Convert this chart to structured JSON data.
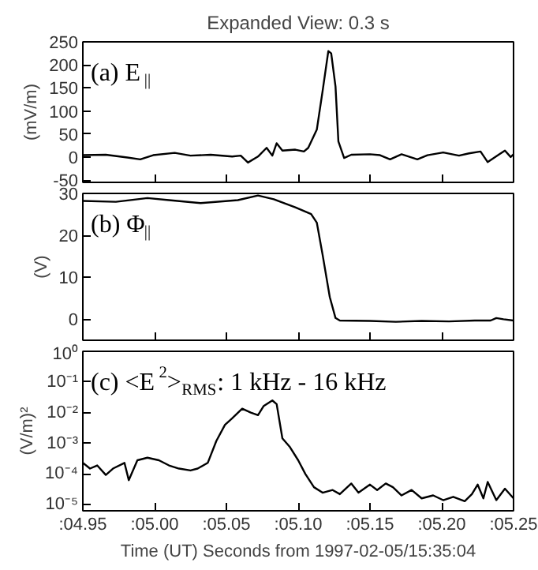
{
  "chart_data": [
    {
      "type": "line",
      "title": "Expanded View: 0.3 s",
      "ylabel": "(mV/m)",
      "annotations": [
        "(a) E$_{||}$"
      ],
      "x": [
        4.95,
        4.966,
        4.981,
        4.99,
        4.999,
        5.014,
        5.025,
        5.039,
        5.054,
        5.06,
        5.065,
        5.072,
        5.078,
        5.082,
        5.085,
        5.089,
        5.098,
        5.104,
        5.107,
        5.113,
        5.117,
        5.121,
        5.123,
        5.126,
        5.128,
        5.132,
        5.137,
        5.15,
        5.157,
        5.164,
        5.172,
        5.183,
        5.19,
        5.201,
        5.212,
        5.219,
        5.227,
        5.232,
        5.24,
        5.244,
        5.248,
        5.25
      ],
      "series": [
        {
          "color": "#000000",
          "values": [
            4,
            5,
            -1,
            -5,
            4,
            9,
            3,
            5,
            1,
            3,
            -12,
            1,
            20,
            3,
            30,
            14,
            16,
            12,
            20,
            60,
            143,
            230,
            225,
            153,
            34,
            -2,
            5,
            6,
            4,
            -5,
            6,
            -5,
            4,
            10,
            3,
            8,
            12,
            -11,
            6,
            14,
            0,
            6
          ]
        }
      ],
      "xlim": [
        4.95,
        5.25
      ],
      "xticks": [
        4.95,
        5.0,
        5.05,
        5.1,
        5.15,
        5.2,
        5.25
      ],
      "ylim": [
        -55,
        250
      ],
      "yticks": [
        -50,
        0,
        50,
        100,
        150,
        200,
        250
      ],
      "tick_labels": "y",
      "grid": false
    },
    {
      "type": "line",
      "ylabel": "(V)",
      "annotations": [
        "(b) Φ$_{||}$"
      ],
      "x": [
        4.95,
        4.973,
        4.995,
        5.01,
        5.032,
        5.058,
        5.072,
        5.083,
        5.098,
        5.109,
        5.113,
        5.117,
        5.122,
        5.126,
        5.129,
        5.15,
        5.168,
        5.186,
        5.205,
        5.223,
        5.234,
        5.238,
        5.243,
        5.25
      ],
      "series": [
        {
          "color": "#000000",
          "values": [
            28.2,
            28,
            28.9,
            28.4,
            27.7,
            28.4,
            29.5,
            28.6,
            26.7,
            25.1,
            23,
            15.4,
            5.3,
            0.3,
            -0.3,
            -0.4,
            -0.6,
            -0.4,
            -0.5,
            -0.3,
            -0.3,
            0.3,
            0,
            -0.3
          ]
        }
      ],
      "xlim": [
        4.95,
        5.25
      ],
      "xticks": [
        4.95,
        5.0,
        5.05,
        5.1,
        5.15,
        5.2,
        5.25
      ],
      "ylim": [
        -5,
        30
      ],
      "yticks": [
        0,
        10,
        20,
        30
      ],
      "tick_labels": "y",
      "grid": false
    },
    {
      "type": "line",
      "ylabel": "(V/m)²",
      "xlabel": "Time (UT) Seconds from 1997-02-05/15:35:04",
      "annotations": [
        "(c) <E$^{2}$>$_{RMS}$: 1 kHz - 16 kHz"
      ],
      "log": true,
      "x": [
        4.95,
        4.955,
        4.96,
        4.966,
        4.971,
        4.979,
        4.982,
        4.988,
        4.995,
        5.003,
        5.01,
        5.017,
        5.025,
        5.03,
        5.037,
        5.043,
        5.049,
        5.054,
        5.061,
        5.067,
        5.072,
        5.076,
        5.082,
        5.085,
        5.089,
        5.094,
        5.1,
        5.105,
        5.111,
        5.117,
        5.124,
        5.129,
        5.137,
        5.142,
        5.15,
        5.155,
        5.161,
        5.166,
        5.172,
        5.179,
        5.186,
        5.194,
        5.201,
        5.208,
        5.216,
        5.221,
        5.225,
        5.229,
        5.232,
        5.238,
        5.244,
        5.25
      ],
      "series": [
        {
          "color": "#000000",
          "values": [
            0.00023,
            0.00015,
            0.00019,
            9.3e-05,
            0.00015,
            0.00023,
            6.3e-05,
            0.00028,
            0.00034,
            0.00028,
            0.00019,
            0.00015,
            0.00013,
            0.00015,
            0.00023,
            0.0012,
            0.004,
            0.0065,
            0.0135,
            0.01,
            0.0083,
            0.0165,
            0.025,
            0.019,
            0.00145,
            0.00078,
            0.00028,
            0.0001,
            3.7e-05,
            2.45e-05,
            3e-05,
            2.2e-05,
            4.9e-05,
            2.45e-05,
            4.5e-05,
            3e-05,
            4.9e-05,
            3.7e-05,
            2e-05,
            3e-05,
            1.6e-05,
            2e-05,
            1.4e-05,
            1.8e-05,
            1.3e-05,
            2.2e-05,
            4.5e-05,
            1.6e-05,
            5.5e-05,
            1.4e-05,
            3.3e-05,
            1.6e-05
          ]
        }
      ],
      "xlim": [
        4.95,
        5.25
      ],
      "xticks": [
        {
          "value": 4.95,
          "label": ":04.95"
        },
        {
          "value": 5.0,
          "label": ":05.00"
        },
        {
          "value": 5.05,
          "label": ":05.05"
        },
        {
          "value": 5.1,
          "label": ":05.10"
        },
        {
          "value": 5.15,
          "label": ":05.15"
        },
        {
          "value": 5.2,
          "label": ":05.20"
        },
        {
          "value": 5.25,
          "label": ":05.25"
        }
      ],
      "ylim": [
        6.3e-06,
        1
      ],
      "yticks": [
        {
          "value": 1e-05,
          "label": "10⁻⁵"
        },
        {
          "value": 0.0001,
          "label": "10⁻⁴"
        },
        {
          "value": 0.001,
          "label": "10⁻³"
        },
        {
          "value": 0.01,
          "label": "10⁻²"
        },
        {
          "value": 0.1,
          "label": "10⁻¹"
        },
        {
          "value": 1,
          "label": "10⁰"
        }
      ],
      "grid": false
    }
  ]
}
